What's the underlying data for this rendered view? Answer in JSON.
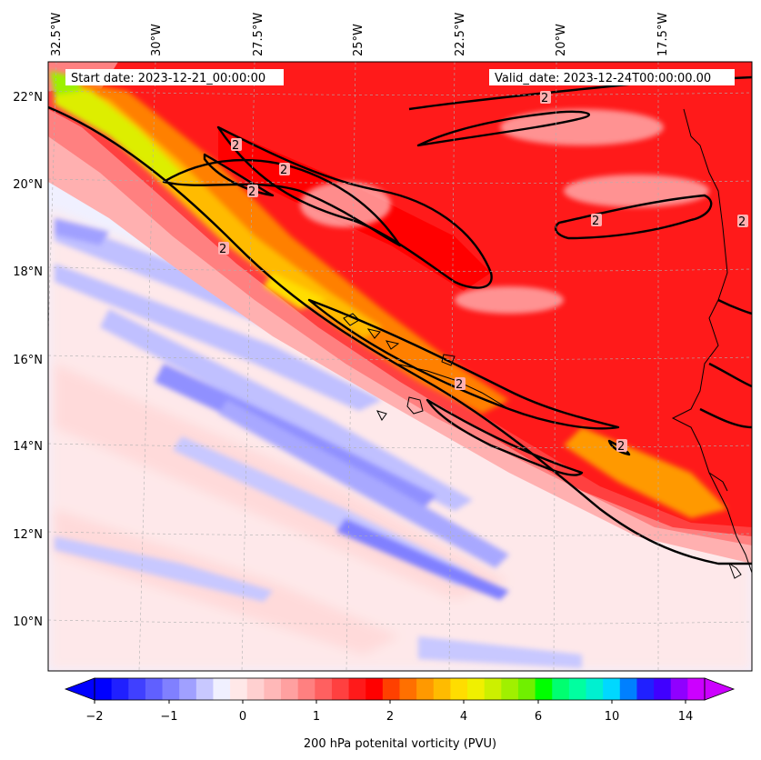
{
  "header": {
    "start_label": "Start date: 2023-12-21_00:00:00",
    "valid_label": "Valid_date: 2023-12-24T00:00:00.00"
  },
  "map": {
    "lon_labels": [
      "32.5°W",
      "30°W",
      "27.5°W",
      "25°W",
      "22.5°W",
      "20°W",
      "17.5°W"
    ],
    "lat_labels": [
      "22°N",
      "20°N",
      "18°N",
      "16°N",
      "14°N",
      "12°N",
      "10°N"
    ],
    "contour_level_label": "2",
    "contour_label_count": 9
  },
  "colorbar": {
    "tick_labels": [
      "−2",
      "−1",
      "0",
      "1",
      "2",
      "4",
      "6",
      "10",
      "14"
    ],
    "label": "200 hPa potenital vorticity (PVU)",
    "colors": [
      "#0000ff",
      "#2020ff",
      "#4040ff",
      "#6060ff",
      "#8080ff",
      "#a0a0ff",
      "#c8c8ff",
      "#f0f0ff",
      "#ffe8e8",
      "#ffd0d0",
      "#ffb8b8",
      "#ffa0a0",
      "#ff8080",
      "#ff6060",
      "#ff4040",
      "#ff1a1a",
      "#ff0000",
      "#ff4000",
      "#ff7000",
      "#ff9900",
      "#ffbb00",
      "#ffdd00",
      "#f0f000",
      "#ccf000",
      "#a0f000",
      "#70f000",
      "#00ff00",
      "#00ff70",
      "#00ffa0",
      "#00f0d0",
      "#00d8ff",
      "#0080ff",
      "#2020ff",
      "#4000ff",
      "#9000ff",
      "#cc00ff"
    ]
  }
}
